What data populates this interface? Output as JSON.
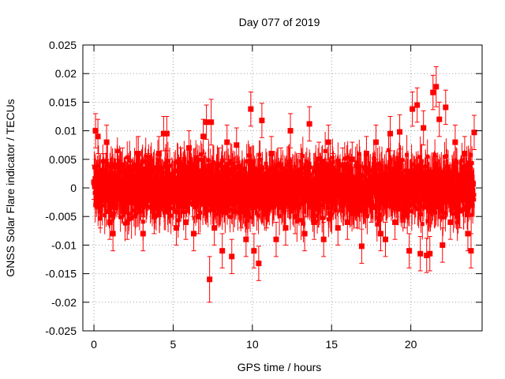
{
  "chart_data": {
    "type": "scatter",
    "title": "Day 077 of 2019",
    "xlabel": "GPS time / hours",
    "ylabel": "GNSS Solar Flare indicator / TECUs",
    "xlim": [
      -0.7,
      24.5
    ],
    "ylim": [
      -0.025,
      0.025
    ],
    "x_ticks": [
      0,
      5,
      10,
      15,
      20
    ],
    "x_tick_labels": [
      "0",
      "5",
      "10",
      "15",
      "20"
    ],
    "y_ticks": [
      0.025,
      0.02,
      0.015,
      0.01,
      0.005,
      0,
      -0.005,
      -0.01,
      -0.015,
      -0.02,
      -0.025
    ],
    "y_tick_labels": [
      "0.025",
      "0.02",
      "0.015",
      "0.01",
      "0.005",
      "0",
      "-0.005",
      "-0.01",
      "-0.015",
      "-0.02",
      "-0.025"
    ],
    "grid": true,
    "marker_color": "#ff0000",
    "errorbar_color": "#ff0000",
    "series": [
      {
        "name": "Solar flare indicator",
        "x": [
          0.0,
          0.1,
          0.25,
          0.4,
          0.6,
          0.8,
          1.0,
          1.2,
          1.5,
          1.8,
          2.1,
          2.4,
          2.8,
          3.1,
          3.4,
          3.8,
          4.1,
          4.4,
          4.6,
          4.8,
          5.2,
          5.5,
          5.8,
          6.0,
          6.3,
          6.6,
          6.9,
          7.1,
          7.3,
          7.4,
          7.6,
          7.9,
          8.1,
          8.4,
          8.7,
          9.0,
          9.3,
          9.6,
          9.9,
          10.1,
          10.4,
          10.6,
          10.9,
          11.2,
          11.5,
          11.8,
          12.1,
          12.4,
          12.7,
          13.0,
          13.3,
          13.6,
          13.9,
          14.2,
          14.5,
          14.8,
          15.1,
          15.4,
          15.7,
          16.0,
          16.3,
          16.6,
          16.9,
          17.2,
          17.5,
          17.8,
          18.1,
          18.4,
          18.7,
          19.0,
          19.3,
          19.6,
          19.9,
          20.1,
          20.4,
          20.6,
          20.8,
          21.0,
          21.2,
          21.4,
          21.6,
          21.8,
          22.0,
          22.2,
          22.5,
          22.8,
          23.1,
          23.4,
          23.6,
          23.8,
          24.0
        ],
        "y": [
          0.001,
          0.01,
          0.009,
          -0.004,
          0.003,
          0.008,
          -0.006,
          -0.008,
          0.002,
          0.004,
          -0.006,
          -0.002,
          0.006,
          -0.008,
          0.003,
          -0.005,
          0.006,
          0.0095,
          0.0095,
          0.002,
          -0.007,
          0.004,
          -0.006,
          0.007,
          -0.008,
          -0.005,
          0.009,
          0.0115,
          -0.016,
          0.0115,
          -0.007,
          0.004,
          -0.011,
          0.008,
          -0.012,
          0.0075,
          -0.004,
          -0.009,
          0.0138,
          -0.011,
          -0.0132,
          0.0118,
          -0.004,
          0.006,
          -0.009,
          0.004,
          -0.007,
          0.01,
          -0.005,
          0.003,
          -0.008,
          0.0112,
          -0.006,
          0.005,
          -0.009,
          0.008,
          0.003,
          -0.007,
          0.004,
          -0.006,
          0.005,
          -0.004,
          -0.0102,
          0.006,
          -0.003,
          0.008,
          -0.008,
          -0.009,
          0.0095,
          -0.006,
          0.0098,
          -0.004,
          -0.011,
          0.0138,
          0.0145,
          -0.0115,
          0.0105,
          -0.0118,
          -0.0115,
          0.0167,
          0.0177,
          0.012,
          -0.01,
          0.0141,
          -0.006,
          0.008,
          -0.004,
          0.006,
          -0.008,
          -0.011,
          0.0097
        ],
        "error": [
          0.003,
          0.003,
          0.003,
          0.003,
          0.003,
          0.003,
          0.003,
          0.003,
          0.003,
          0.003,
          0.003,
          0.003,
          0.003,
          0.003,
          0.003,
          0.003,
          0.003,
          0.003,
          0.003,
          0.003,
          0.003,
          0.003,
          0.003,
          0.003,
          0.003,
          0.003,
          0.003,
          0.003,
          0.004,
          0.004,
          0.003,
          0.003,
          0.003,
          0.003,
          0.003,
          0.003,
          0.003,
          0.003,
          0.003,
          0.003,
          0.003,
          0.003,
          0.003,
          0.003,
          0.003,
          0.003,
          0.003,
          0.003,
          0.003,
          0.003,
          0.003,
          0.003,
          0.003,
          0.003,
          0.003,
          0.003,
          0.003,
          0.003,
          0.003,
          0.003,
          0.003,
          0.003,
          0.003,
          0.003,
          0.003,
          0.003,
          0.003,
          0.003,
          0.003,
          0.003,
          0.003,
          0.003,
          0.003,
          0.003,
          0.003,
          0.003,
          0.003,
          0.003,
          0.003,
          0.003,
          0.0035,
          0.003,
          0.003,
          0.003,
          0.003,
          0.003,
          0.003,
          0.003,
          0.003,
          0.003,
          0.003
        ]
      }
    ],
    "dense_band": {
      "description": "continuous cloud of points with error bars",
      "x_start": 0.0,
      "x_end": 24.0,
      "typical_range": [
        -0.007,
        0.007
      ],
      "typical_error": 0.003
    }
  }
}
